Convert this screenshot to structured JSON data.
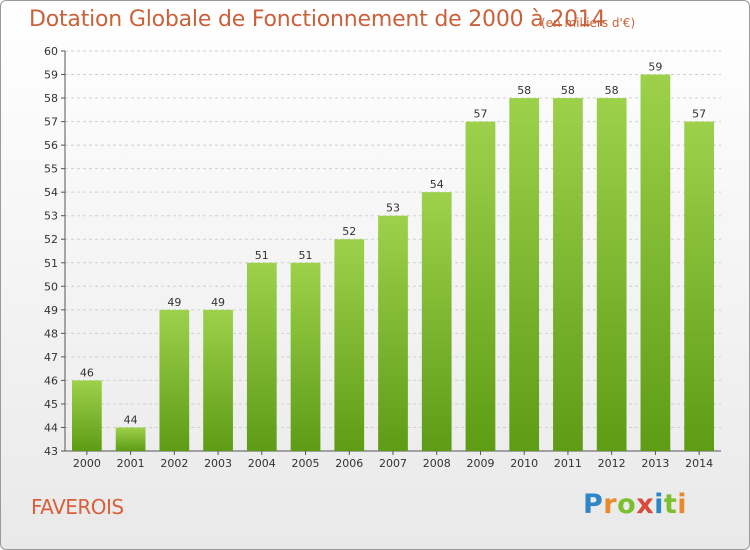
{
  "title": "Dotation Globale de Fonctionnement de 2000 à 2014",
  "subtitle": "(en milliers d'€)",
  "commune": "FAVEROIS",
  "logo": {
    "letters": [
      "P",
      "r",
      "o",
      "x",
      "i",
      "t",
      "i"
    ],
    "colors": [
      "#2e86c8",
      "#e8892c",
      "#7bbf2e",
      "#d94a3a",
      "#2e86c8",
      "#7bbf2e",
      "#e8892c"
    ]
  },
  "colors": {
    "bar_top": "#9dd14b",
    "bar_bottom": "#5e9c16",
    "grid": "#cfcfcf",
    "axis": "#555555",
    "title": "#c9623a"
  },
  "chart_data": {
    "type": "bar",
    "categories": [
      "2000",
      "2001",
      "2002",
      "2003",
      "2004",
      "2005",
      "2006",
      "2007",
      "2008",
      "2009",
      "2010",
      "2011",
      "2012",
      "2013",
      "2014"
    ],
    "values": [
      46,
      44,
      49,
      49,
      51,
      51,
      52,
      53,
      54,
      57,
      58,
      58,
      58,
      59,
      57
    ],
    "ylim": [
      43,
      60
    ],
    "yticks": [
      43,
      44,
      45,
      46,
      47,
      48,
      49,
      50,
      51,
      52,
      53,
      54,
      55,
      56,
      57,
      58,
      59,
      60
    ],
    "grid": true,
    "data_labels": true
  }
}
